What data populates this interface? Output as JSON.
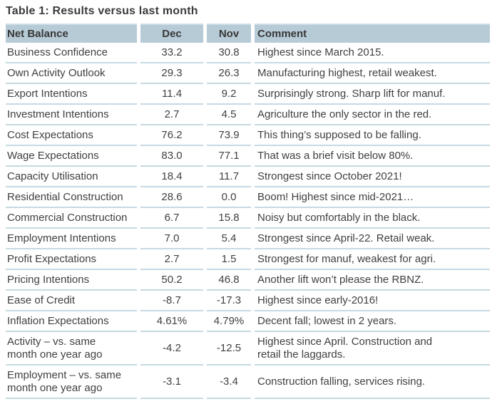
{
  "title": "Table 1: Results versus last month",
  "table": {
    "columns": [
      "Net Balance",
      "Dec",
      "Nov",
      "Comment"
    ],
    "rows": [
      {
        "label": "Business Confidence",
        "dec": "33.2",
        "nov": "30.8",
        "comment": "Highest since March 2015."
      },
      {
        "label": "Own Activity Outlook",
        "dec": "29.3",
        "nov": "26.3",
        "comment": "Manufacturing highest, retail weakest."
      },
      {
        "label": "Export Intentions",
        "dec": "11.4",
        "nov": "9.2",
        "comment": "Surprisingly strong. Sharp lift for manuf."
      },
      {
        "label": "Investment Intentions",
        "dec": "2.7",
        "nov": "4.5",
        "comment": "Agriculture the only sector in the red."
      },
      {
        "label": "Cost Expectations",
        "dec": "76.2",
        "nov": "73.9",
        "comment": "This thing’s supposed to be falling."
      },
      {
        "label": "Wage Expectations",
        "dec": "83.0",
        "nov": "77.1",
        "comment": "That was a brief visit below 80%."
      },
      {
        "label": "Capacity Utilisation",
        "dec": "18.4",
        "nov": "11.7",
        "comment": "Strongest since October 2021!"
      },
      {
        "label": "Residential Construction",
        "dec": "28.6",
        "nov": "0.0",
        "comment": "Boom! Highest since mid-2021…"
      },
      {
        "label": "Commercial Construction",
        "dec": "6.7",
        "nov": "15.8",
        "comment": "Noisy but comfortably in the black."
      },
      {
        "label": "Employment Intentions",
        "dec": "7.0",
        "nov": "5.4",
        "comment": "Strongest since April-22. Retail weak."
      },
      {
        "label": "Profit Expectations",
        "dec": "2.7",
        "nov": "1.5",
        "comment": "Strongest for manuf, weakest for agri."
      },
      {
        "label": "Pricing Intentions",
        "dec": "50.2",
        "nov": "46.8",
        "comment": "Another lift won’t please the RBNZ."
      },
      {
        "label": "Ease of Credit",
        "dec": "-8.7",
        "nov": "-17.3",
        "comment": "Highest since early-2016!"
      },
      {
        "label": "Inflation Expectations",
        "dec": "4.61%",
        "nov": "4.79%",
        "comment": "Decent fall; lowest in 2 years."
      },
      {
        "label": "Activity – vs. same\nmonth one year ago",
        "dec": "-4.2",
        "nov": "-12.5",
        "comment": "Highest since April. Construction and\nretail the laggards."
      },
      {
        "label": "Employment – vs. same\nmonth one year ago",
        "dec": "-3.1",
        "nov": "-3.4",
        "comment": "Construction falling, services rising."
      }
    ]
  },
  "colors": {
    "title_text": "#3e3c3b",
    "header_bg": "#b7cbd7",
    "header_top_edge": "#cfdfe8",
    "header_text": "#373737",
    "body_text": "#404040",
    "row_border": "#c6d9e3",
    "page_bg": "#ffffff"
  }
}
